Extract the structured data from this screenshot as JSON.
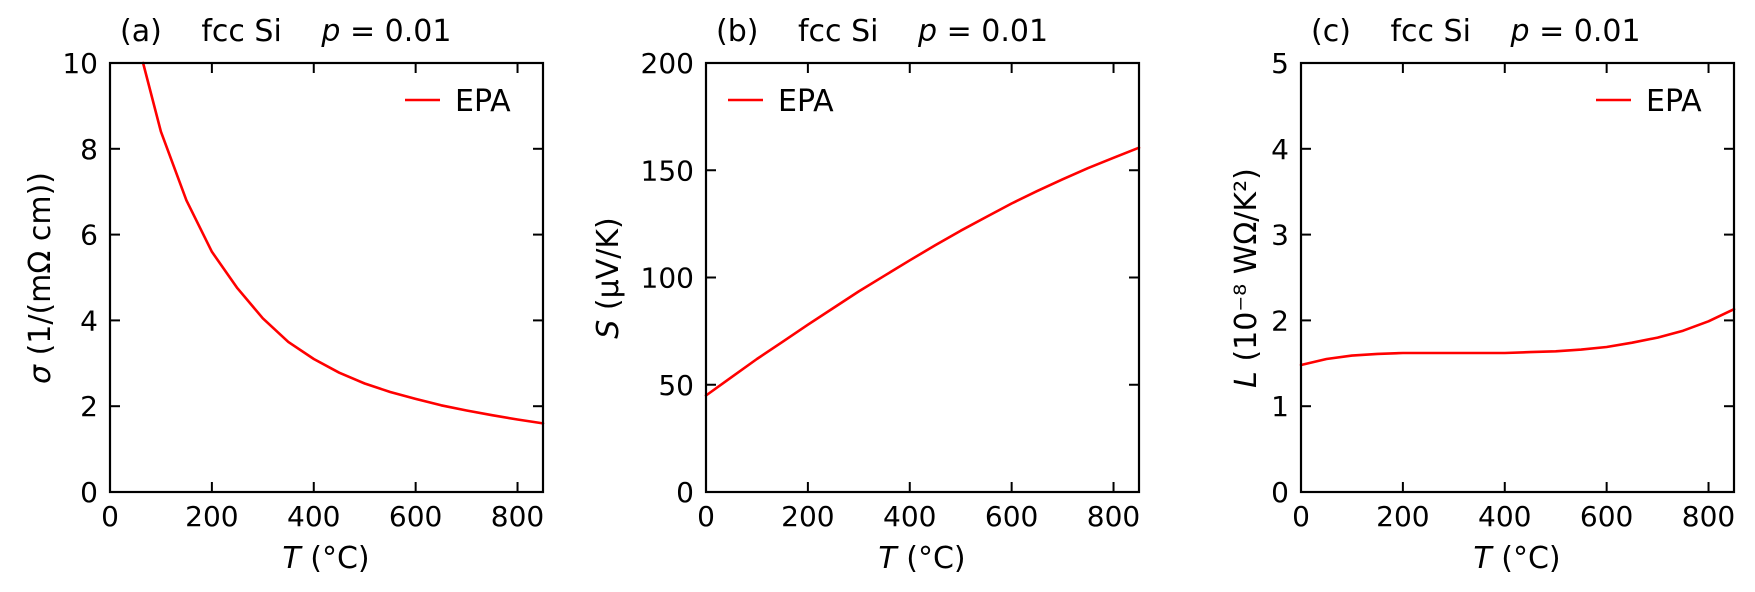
{
  "figure": {
    "line_color": "#ff0000",
    "panels": [
      {
        "id": "a",
        "title": {
          "label": "(a)",
          "material": "fcc Si",
          "param_symbol": "p",
          "param_value": " = 0.01"
        },
        "ylabel_symbol": "σ",
        "ylabel_rest": " (1/(mΩ cm))",
        "xlabel_symbol": "T",
        "xlabel_rest": " (°C)",
        "legend": "EPA",
        "legend_position": "top-right"
      },
      {
        "id": "b",
        "title": {
          "label": "(b)",
          "material": "fcc Si",
          "param_symbol": "p",
          "param_value": " = 0.01"
        },
        "ylabel_symbol": "S",
        "ylabel_rest": " (μV/K)",
        "xlabel_symbol": "T",
        "xlabel_rest": " (°C)",
        "legend": "EPA",
        "legend_position": "top-left"
      },
      {
        "id": "c",
        "title": {
          "label": "(c)",
          "material": "fcc Si",
          "param_symbol": "p",
          "param_value": " = 0.01"
        },
        "ylabel_symbol": "L",
        "ylabel_rest": " (10⁻⁸ WΩ/K²)",
        "xlabel_symbol": "T",
        "xlabel_rest": " (°C)",
        "legend": "EPA",
        "legend_position": "top-right"
      }
    ]
  },
  "chart_data": [
    {
      "type": "line",
      "title": "(a) fcc Si p = 0.01",
      "xlabel": "T (°C)",
      "ylabel": "σ (1/(mΩ cm))",
      "xlim": [
        0,
        850
      ],
      "ylim": [
        0,
        10
      ],
      "xticks": [
        0,
        200,
        400,
        600,
        800
      ],
      "yticks": [
        0,
        2,
        4,
        6,
        8,
        10
      ],
      "legend": "top-right",
      "series": [
        {
          "name": "EPA",
          "x": [
            65,
            100,
            150,
            200,
            250,
            300,
            350,
            400,
            450,
            500,
            550,
            600,
            650,
            700,
            750,
            800,
            850
          ],
          "y": [
            10.0,
            8.4,
            6.8,
            5.6,
            4.75,
            4.05,
            3.5,
            3.1,
            2.78,
            2.53,
            2.33,
            2.17,
            2.02,
            1.9,
            1.79,
            1.69,
            1.6
          ]
        }
      ]
    },
    {
      "type": "line",
      "title": "(b) fcc Si p = 0.01",
      "xlabel": "T (°C)",
      "ylabel": "S (μV/K)",
      "xlim": [
        0,
        850
      ],
      "ylim": [
        0,
        200
      ],
      "xticks": [
        0,
        200,
        400,
        600,
        800
      ],
      "yticks": [
        0,
        50,
        100,
        150,
        200
      ],
      "legend": "top-left",
      "series": [
        {
          "name": "EPA",
          "x": [
            0,
            50,
            100,
            150,
            200,
            250,
            300,
            350,
            400,
            450,
            500,
            550,
            600,
            650,
            700,
            750,
            800,
            850
          ],
          "y": [
            45,
            53.5,
            62,
            70,
            78,
            85.8,
            93.5,
            100.8,
            108,
            115,
            121.8,
            128.2,
            134.5,
            140.3,
            145.8,
            151,
            155.8,
            160.5
          ]
        }
      ]
    },
    {
      "type": "line",
      "title": "(c) fcc Si p = 0.01",
      "xlabel": "T (°C)",
      "ylabel": "L (10⁻⁸ WΩ/K²)",
      "xlim": [
        0,
        850
      ],
      "ylim": [
        0,
        5
      ],
      "xticks": [
        0,
        200,
        400,
        600,
        800
      ],
      "yticks": [
        0,
        1,
        2,
        3,
        4,
        5
      ],
      "legend": "top-right",
      "series": [
        {
          "name": "EPA",
          "x": [
            0,
            50,
            100,
            150,
            200,
            250,
            300,
            350,
            400,
            450,
            500,
            550,
            600,
            650,
            700,
            750,
            800,
            850
          ],
          "y": [
            1.48,
            1.55,
            1.59,
            1.61,
            1.62,
            1.62,
            1.62,
            1.62,
            1.62,
            1.63,
            1.64,
            1.66,
            1.69,
            1.74,
            1.8,
            1.88,
            1.99,
            2.13
          ]
        }
      ]
    }
  ]
}
